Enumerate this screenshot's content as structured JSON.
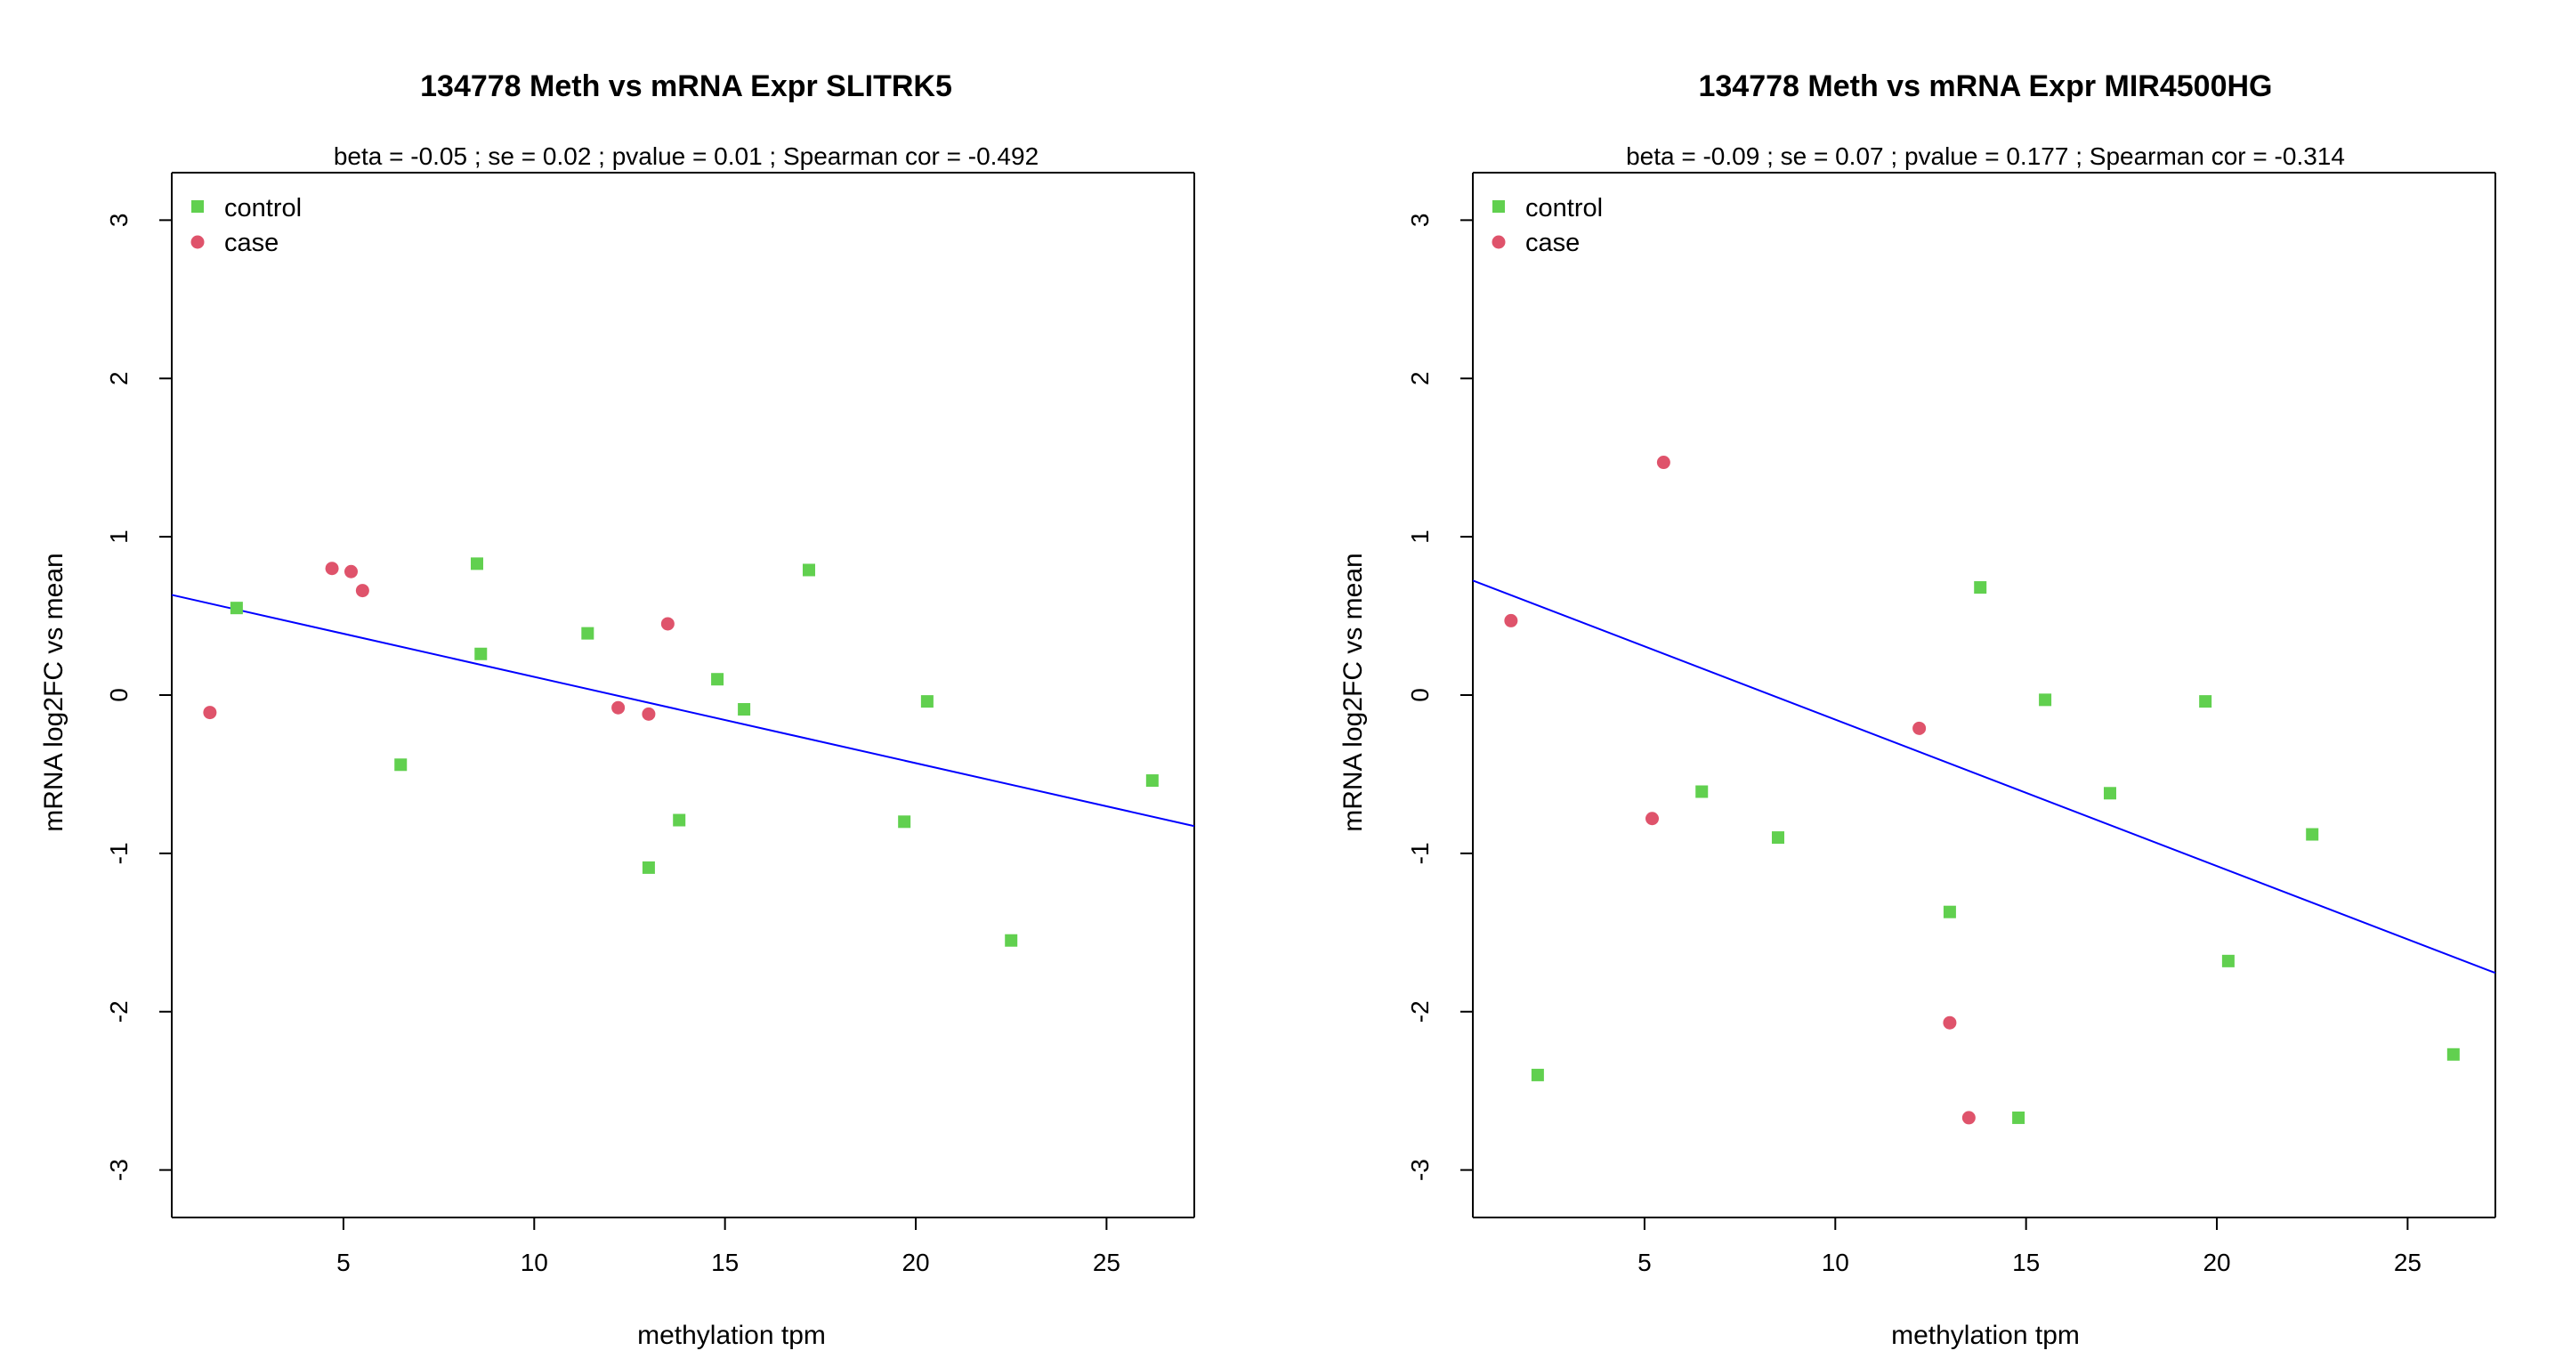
{
  "colors": {
    "control": "#61D04F",
    "case": "#DF536B",
    "fit_line": "#0000FF",
    "axis": "#000000"
  },
  "chart_data": [
    {
      "type": "scatter",
      "title": "134778 Meth vs mRNA Expr SLITRK5",
      "subtitle": "beta =  -0.05 ; se = 0.02 ; pvalue =  0.01 ; Spearman cor =  -0.492",
      "xlabel": "methylation tpm",
      "ylabel": "mRNA log2FC vs mean",
      "xlim": [
        0.5,
        27.3
      ],
      "ylim": [
        -3.3,
        3.3
      ],
      "xticks": [
        5,
        10,
        15,
        20,
        25
      ],
      "yticks": [
        -3,
        -2,
        -1,
        0,
        1,
        2,
        3
      ],
      "legend": {
        "position": "top-left",
        "entries": [
          "control",
          "case"
        ]
      },
      "regression": {
        "intercept": 0.66,
        "slope": -0.0545
      },
      "series": [
        {
          "name": "control",
          "marker": "square",
          "points": [
            [
              2.2,
              0.55
            ],
            [
              6.5,
              -0.44
            ],
            [
              8.5,
              0.83
            ],
            [
              8.6,
              0.26
            ],
            [
              11.4,
              0.39
            ],
            [
              13.0,
              -1.09
            ],
            [
              13.8,
              -0.79
            ],
            [
              14.8,
              0.1
            ],
            [
              15.5,
              -0.09
            ],
            [
              17.2,
              0.79
            ],
            [
              19.7,
              -0.8
            ],
            [
              20.3,
              -0.04
            ],
            [
              22.5,
              -1.55
            ],
            [
              26.2,
              -0.54
            ]
          ]
        },
        {
          "name": "case",
          "marker": "circle",
          "points": [
            [
              1.5,
              -0.11
            ],
            [
              4.7,
              0.8
            ],
            [
              5.2,
              0.78
            ],
            [
              5.5,
              0.66
            ],
            [
              12.2,
              -0.08
            ],
            [
              13.0,
              -0.12
            ],
            [
              13.5,
              0.45
            ]
          ]
        }
      ]
    },
    {
      "type": "scatter",
      "title": "134778 Meth vs mRNA Expr MIR4500HG",
      "subtitle": "beta =  -0.09 ; se = 0.07 ; pvalue =  0.177 ; Spearman cor =  -0.314",
      "xlabel": "methylation tpm",
      "ylabel": "mRNA log2FC vs mean",
      "xlim": [
        0.5,
        27.3
      ],
      "ylim": [
        -3.3,
        3.3
      ],
      "xticks": [
        5,
        10,
        15,
        20,
        25
      ],
      "yticks": [
        -3,
        -2,
        -1,
        0,
        1,
        2,
        3
      ],
      "legend": {
        "position": "top-left",
        "entries": [
          "control",
          "case"
        ]
      },
      "regression": {
        "intercept": 0.77,
        "slope": -0.0925
      },
      "series": [
        {
          "name": "control",
          "marker": "square",
          "points": [
            [
              2.2,
              -2.4
            ],
            [
              6.5,
              -0.61
            ],
            [
              8.5,
              -0.9
            ],
            [
              13.0,
              -1.37
            ],
            [
              13.8,
              0.68
            ],
            [
              14.8,
              -2.67
            ],
            [
              15.5,
              -0.03
            ],
            [
              17.2,
              -0.62
            ],
            [
              19.7,
              -0.04
            ],
            [
              20.3,
              -1.68
            ],
            [
              22.5,
              -0.88
            ],
            [
              26.2,
              -2.27
            ]
          ]
        },
        {
          "name": "case",
          "marker": "circle",
          "points": [
            [
              1.5,
              0.47
            ],
            [
              5.2,
              -0.78
            ],
            [
              5.5,
              1.47
            ],
            [
              12.2,
              -0.21
            ],
            [
              13.0,
              -2.07
            ],
            [
              13.5,
              -2.67
            ]
          ]
        }
      ]
    }
  ]
}
